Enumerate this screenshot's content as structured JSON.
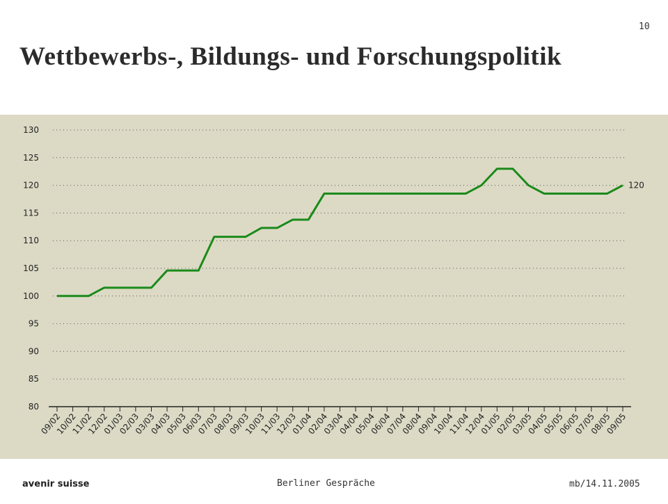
{
  "page_number": "10",
  "title": "Wettbewerbs-, Bildungs- und Forschungspolitik",
  "footer": {
    "logo": "avenir suisse",
    "center": "Berliner Gespräche",
    "right": "mb/14.11.2005"
  },
  "chart_data": {
    "type": "line",
    "categories": [
      "09/02",
      "10/02",
      "11/02",
      "12/02",
      "01/03",
      "02/03",
      "03/03",
      "04/03",
      "05/03",
      "06/03",
      "07/03",
      "08/03",
      "09/03",
      "10/03",
      "11/03",
      "12/03",
      "01/04",
      "02/04",
      "03/04",
      "04/04",
      "05/04",
      "06/04",
      "07/04",
      "08/04",
      "09/04",
      "10/04",
      "11/04",
      "12/04",
      "01/05",
      "02/05",
      "03/05",
      "04/05",
      "05/05",
      "06/05",
      "07/05",
      "08/05",
      "09/05"
    ],
    "series": [
      {
        "color": "#1a8a1a",
        "values": [
          100,
          100,
          100,
          101.5,
          101.5,
          101.5,
          101.5,
          104.6,
          104.6,
          104.6,
          110.7,
          110.7,
          110.7,
          112.3,
          112.3,
          113.8,
          113.8,
          118.5,
          118.5,
          118.5,
          118.5,
          118.5,
          118.5,
          118.5,
          118.5,
          118.5,
          118.5,
          120,
          123,
          123,
          120,
          118.5,
          118.5,
          118.5,
          118.5,
          118.5,
          120
        ]
      }
    ],
    "end_label": "120",
    "ylim": [
      80,
      130
    ],
    "yticks": [
      80,
      85,
      90,
      95,
      100,
      105,
      110,
      115,
      120,
      125,
      130
    ],
    "grid": true,
    "background": "#dcdac5"
  }
}
